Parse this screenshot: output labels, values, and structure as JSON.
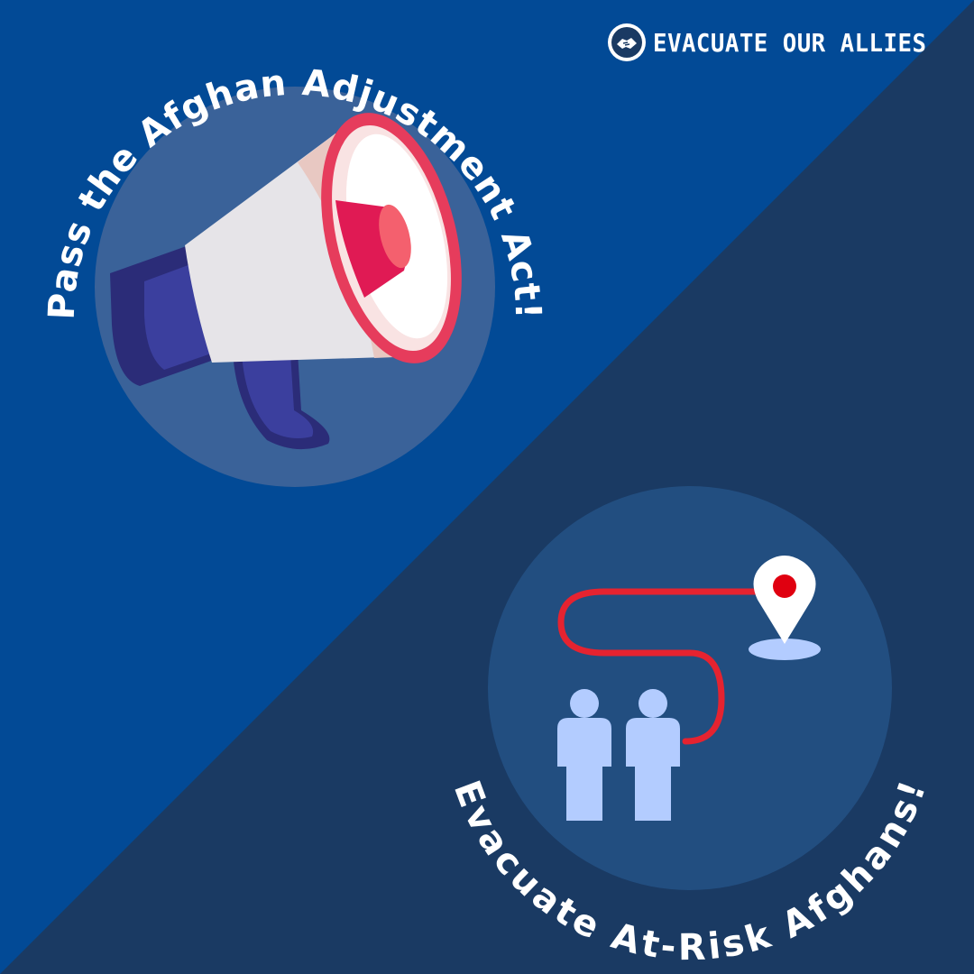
{
  "brand": {
    "name": "EVACUATE OUR ALLIES",
    "icon": "handshake-icon"
  },
  "top_circle": {
    "arc_text": "Pass the Afghan Adjustment Act!",
    "icon": "megaphone-icon"
  },
  "bottom_circle": {
    "arc_text": "Evacuate At-Risk Afghans!",
    "icons": [
      "people-icon",
      "route-line",
      "location-pin-icon"
    ]
  },
  "colors": {
    "background_top": "#024a96",
    "background_bottom": "#1a3a63",
    "top_circle": "#3a6299",
    "bottom_circle": "#224e80",
    "accent_red": "#e52330",
    "people": "#b3ccff"
  }
}
